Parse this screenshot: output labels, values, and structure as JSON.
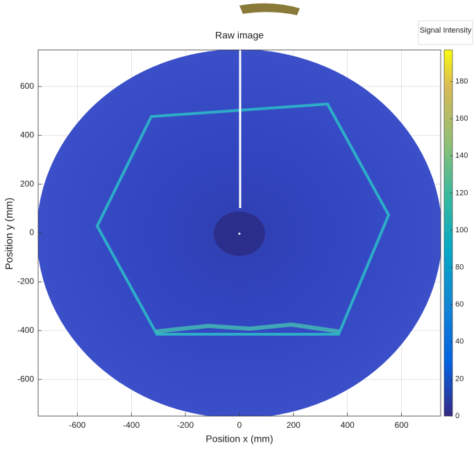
{
  "chart_data": {
    "type": "heatmap",
    "title": "Raw image",
    "x_label": "Position x (mm)",
    "y_label": "Position y (mm)",
    "colorbar_label": "Signal Intensity",
    "xlim": [
      -745,
      745
    ],
    "xticks": [
      -600,
      -400,
      -200,
      0,
      200,
      400,
      600
    ],
    "ylim": [
      -750,
      750
    ],
    "yticks": [
      -600,
      -400,
      -200,
      0,
      200,
      400,
      600
    ],
    "clim": [
      0,
      197
    ],
    "cticks": [
      0,
      20,
      40,
      60,
      80,
      100,
      120,
      140,
      160,
      180
    ],
    "grid": true
  }
}
